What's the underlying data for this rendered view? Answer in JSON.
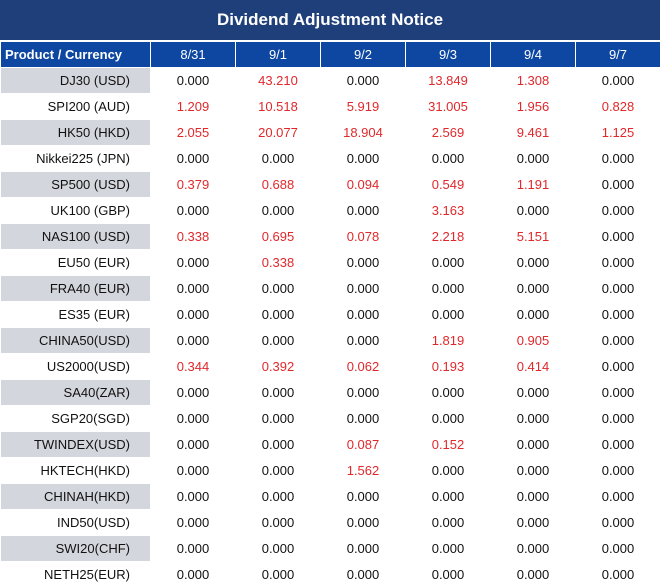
{
  "title": "Dividend Adjustment Notice",
  "header_label": "Product / Currency",
  "dates": [
    "8/31",
    "9/1",
    "9/2",
    "9/3",
    "9/4",
    "9/7"
  ],
  "colors": {
    "title_bg": "#1f3f7a",
    "header_bg": "#0d47a1",
    "positive": "#e0282b",
    "zero": "#111111",
    "row_shade": "#d4d6dd"
  },
  "rows": [
    {
      "product": "DJ30 (USD)",
      "values": [
        "0.000",
        "43.210",
        "0.000",
        "13.849",
        "1.308",
        "0.000"
      ]
    },
    {
      "product": "SPI200 (AUD)",
      "values": [
        "1.209",
        "10.518",
        "5.919",
        "31.005",
        "1.956",
        "0.828"
      ]
    },
    {
      "product": "HK50 (HKD)",
      "values": [
        "2.055",
        "20.077",
        "18.904",
        "2.569",
        "9.461",
        "1.125"
      ]
    },
    {
      "product": "Nikkei225 (JPN)",
      "values": [
        "0.000",
        "0.000",
        "0.000",
        "0.000",
        "0.000",
        "0.000"
      ]
    },
    {
      "product": "SP500 (USD)",
      "values": [
        "0.379",
        "0.688",
        "0.094",
        "0.549",
        "1.191",
        "0.000"
      ]
    },
    {
      "product": "UK100 (GBP)",
      "values": [
        "0.000",
        "0.000",
        "0.000",
        "3.163",
        "0.000",
        "0.000"
      ]
    },
    {
      "product": "NAS100 (USD)",
      "values": [
        "0.338",
        "0.695",
        "0.078",
        "2.218",
        "5.151",
        "0.000"
      ]
    },
    {
      "product": "EU50 (EUR)",
      "values": [
        "0.000",
        "0.338",
        "0.000",
        "0.000",
        "0.000",
        "0.000"
      ]
    },
    {
      "product": "FRA40 (EUR)",
      "values": [
        "0.000",
        "0.000",
        "0.000",
        "0.000",
        "0.000",
        "0.000"
      ]
    },
    {
      "product": "ES35 (EUR)",
      "values": [
        "0.000",
        "0.000",
        "0.000",
        "0.000",
        "0.000",
        "0.000"
      ]
    },
    {
      "product": "CHINA50(USD)",
      "values": [
        "0.000",
        "0.000",
        "0.000",
        "1.819",
        "0.905",
        "0.000"
      ]
    },
    {
      "product": "US2000(USD)",
      "values": [
        "0.344",
        "0.392",
        "0.062",
        "0.193",
        "0.414",
        "0.000"
      ]
    },
    {
      "product": "SA40(ZAR)",
      "values": [
        "0.000",
        "0.000",
        "0.000",
        "0.000",
        "0.000",
        "0.000"
      ]
    },
    {
      "product": "SGP20(SGD)",
      "values": [
        "0.000",
        "0.000",
        "0.000",
        "0.000",
        "0.000",
        "0.000"
      ]
    },
    {
      "product": "TWINDEX(USD)",
      "values": [
        "0.000",
        "0.000",
        "0.087",
        "0.152",
        "0.000",
        "0.000"
      ]
    },
    {
      "product": "HKTECH(HKD)",
      "values": [
        "0.000",
        "0.000",
        "1.562",
        "0.000",
        "0.000",
        "0.000"
      ]
    },
    {
      "product": "CHINAH(HKD)",
      "values": [
        "0.000",
        "0.000",
        "0.000",
        "0.000",
        "0.000",
        "0.000"
      ]
    },
    {
      "product": "IND50(USD)",
      "values": [
        "0.000",
        "0.000",
        "0.000",
        "0.000",
        "0.000",
        "0.000"
      ]
    },
    {
      "product": "SWI20(CHF)",
      "values": [
        "0.000",
        "0.000",
        "0.000",
        "0.000",
        "0.000",
        "0.000"
      ]
    },
    {
      "product": "NETH25(EUR)",
      "values": [
        "0.000",
        "0.000",
        "0.000",
        "0.000",
        "0.000",
        "0.000"
      ]
    }
  ]
}
